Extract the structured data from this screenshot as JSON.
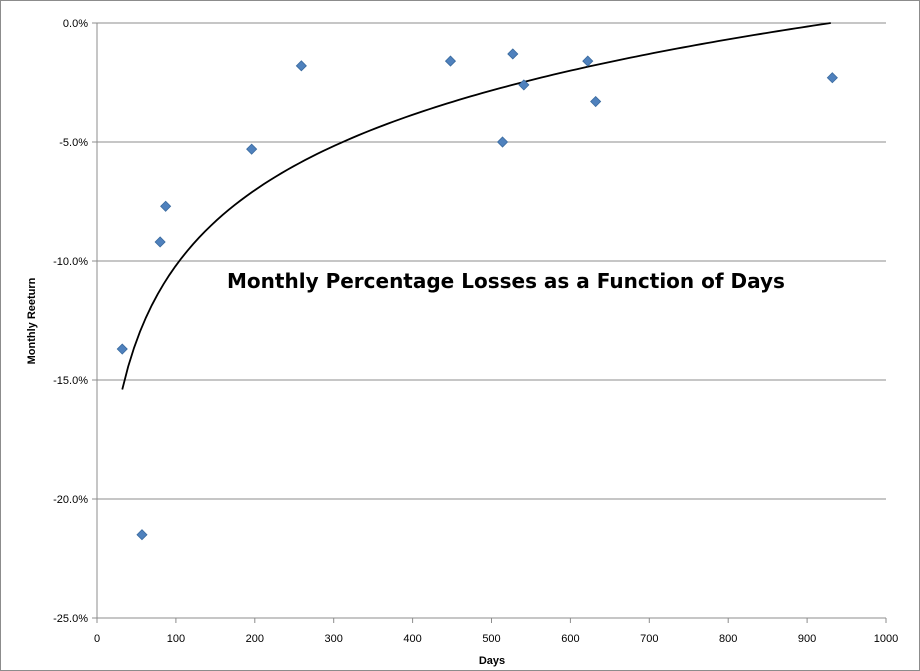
{
  "chart_data": {
    "type": "scatter",
    "title": "Monthly Percentage Losses as a Function of Days",
    "xlabel": "Days",
    "ylabel": "Monthly Reeturn",
    "xlim": [
      0,
      1000
    ],
    "ylim": [
      -0.25,
      0
    ],
    "grid": "horizontal",
    "x_ticks": [
      0,
      100,
      200,
      300,
      400,
      500,
      600,
      700,
      800,
      900,
      1000
    ],
    "y_ticks": [
      0,
      -0.05,
      -0.1,
      -0.15,
      -0.2,
      -0.25
    ],
    "x_tick_labels": [
      "0",
      "100",
      "200",
      "300",
      "400",
      "500",
      "600",
      "700",
      "800",
      "900",
      "1000"
    ],
    "y_tick_labels": [
      "0.0%",
      "-5.0%",
      "-10.0%",
      "-15.0%",
      "-20.0%",
      "-25.0%"
    ],
    "marker_color": "#4F81BD",
    "series": [
      {
        "marker": "diamond",
        "points": [
          {
            "x": 32,
            "y": -0.137
          },
          {
            "x": 57,
            "y": -0.215
          },
          {
            "x": 80,
            "y": -0.092
          },
          {
            "x": 87,
            "y": -0.077
          },
          {
            "x": 196,
            "y": -0.053
          },
          {
            "x": 259,
            "y": -0.018
          },
          {
            "x": 448,
            "y": -0.016
          },
          {
            "x": 514,
            "y": -0.05
          },
          {
            "x": 527,
            "y": -0.013
          },
          {
            "x": 541,
            "y": -0.026
          },
          {
            "x": 622,
            "y": -0.016
          },
          {
            "x": 632,
            "y": -0.033
          },
          {
            "x": 932,
            "y": -0.023
          }
        ]
      }
    ],
    "trendline": {
      "kind": "logarithmic",
      "color": "#000000",
      "x_range": [
        32,
        930
      ],
      "y_at_start": -0.154,
      "y_at_end": 0.0
    }
  }
}
